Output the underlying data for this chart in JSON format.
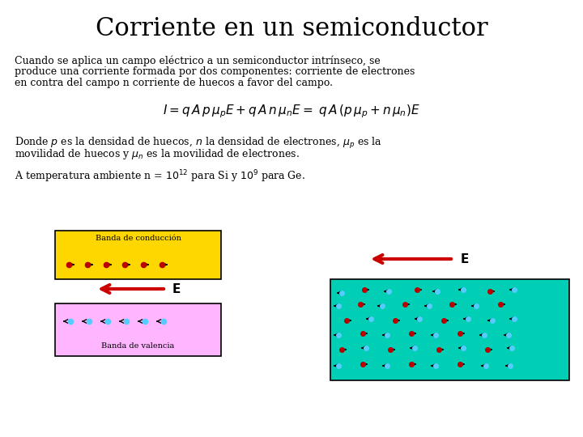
{
  "title": "Corriente en un semiconductor",
  "bg_color": "#ffffff",
  "title_fontsize": 22,
  "body_fontsize": 9,
  "formula_fontsize": 11,
  "body_text1_line1": "Cuando se aplica un campo eléctrico a un semiconductor intrínseco, se",
  "body_text1_line2": "produce una corriente formada por dos componentes: corriente de electrones",
  "body_text1_line3": "en contra del campo n corriente de huecos a favor del campo.",
  "formula": "$I = q\\,A\\,p\\,\\mu_p E + q\\,A\\,n\\,\\mu_n E =\\; q\\,A\\,(p\\,\\mu_p + n\\,\\mu_n)E$",
  "body_text2_line1": "Donde $p$ es la densidad de huecos, $n$ la densidad de electrones, $\\mu_p$ es la",
  "body_text2_line2": "movilidad de huecos y $\\mu_n$ es la movilidad de electrones.",
  "body_text3": "A temperatura ambiente n = $10^{12}$ para Si y $10^9$ para Ge.",
  "cond_band_label": "Banda de conducción",
  "val_band_label": "Banda de valencia",
  "cond_band_color": "#FFD700",
  "val_band_color": "#FFB6FF",
  "teal_box_color": "#00CEB5",
  "arrow_color": "#CC0000",
  "electron_color": "#BB0000",
  "hole_color": "#55CCFF",
  "dark_color": "#000000"
}
